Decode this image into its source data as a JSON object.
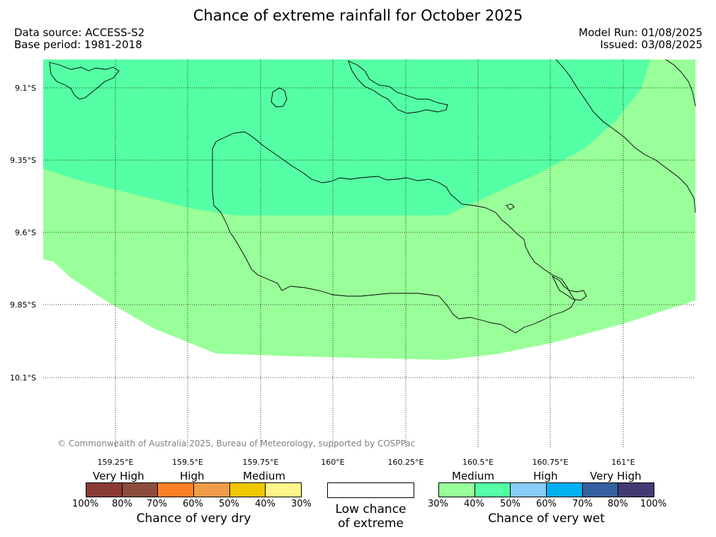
{
  "title": "Chance of extreme rainfall for October 2025",
  "data_source": "Data source: ACCESS-S2",
  "base_period": "Base period: 1981-2018",
  "model_run": "Model Run: 01/08/2025",
  "issued": "Issued: 03/08/2025",
  "copyright": "© Commonwealth of Australia 2025, Bureau of Meteorology, supported by COSPPac",
  "lat_labels": [
    "9.1°S",
    "9.35°S",
    "9.6°S",
    "9.85°S",
    "10.1°S"
  ],
  "lon_labels": [
    "159.25°E",
    "159.5°E",
    "159.75°E",
    "160°E",
    "160.25°E",
    "160.5°E",
    "160.75°E",
    "161°E"
  ],
  "colors": {
    "wet_medium": "#99ff99",
    "wet_high": "#55ffa5",
    "coastline": "#000000",
    "grid": "#000000"
  },
  "legend": {
    "dry": {
      "categories": [
        "Very High",
        "High",
        "Medium"
      ],
      "percentages": [
        "100%",
        "80%",
        "70%",
        "60%",
        "50%",
        "40%",
        "30%"
      ],
      "colors": [
        "#8b3a35",
        "#8d4c3c",
        "#fd7f26",
        "#ef9b4a",
        "#f0c700",
        "#fff58a"
      ],
      "title": "Chance of very dry"
    },
    "neutral": {
      "line1": "Low chance",
      "line2": "of extreme"
    },
    "wet": {
      "categories": [
        "Medium",
        "High",
        "Very High"
      ],
      "percentages": [
        "30%",
        "40%",
        "50%",
        "60%",
        "70%",
        "80%",
        "100%"
      ],
      "colors": [
        "#99ff99",
        "#55ffa5",
        "#88ccfa",
        "#00b0f0",
        "#355f9e",
        "#433a74"
      ],
      "title": "Chance of very wet"
    }
  }
}
